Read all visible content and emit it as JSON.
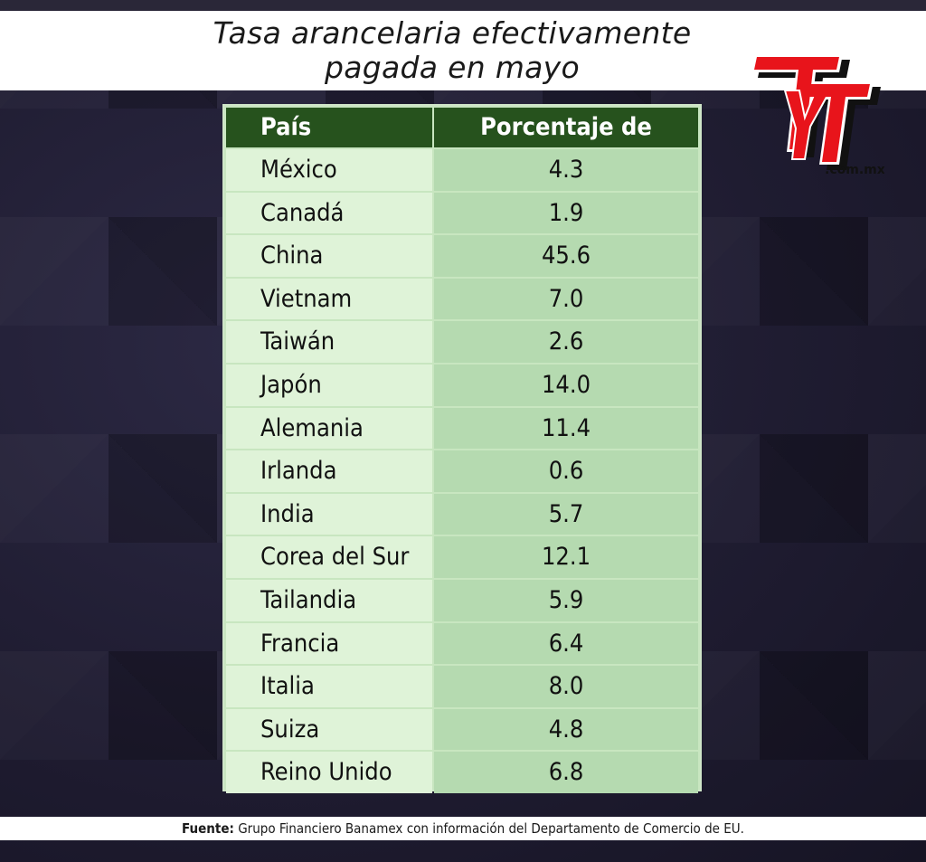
{
  "header": {
    "title_line1": "Tasa arancelaria efectivamente",
    "title_line2": "pagada en mayo"
  },
  "logo": {
    "text": "TyT",
    "domain": ".com.mx",
    "colors": {
      "red": "#e8141b",
      "black": "#111111",
      "white": "#ffffff"
    }
  },
  "chart_data": {
    "type": "table",
    "columns": [
      "País",
      "Porcentaje de arancel"
    ],
    "rows": [
      [
        "México",
        "4.3"
      ],
      [
        "Canadá",
        "1.9"
      ],
      [
        "China",
        "45.6"
      ],
      [
        "Vietnam",
        "7.0"
      ],
      [
        "Taiwán",
        "2.6"
      ],
      [
        "Japón",
        "14.0"
      ],
      [
        "Alemania",
        "11.4"
      ],
      [
        "Irlanda",
        "0.6"
      ],
      [
        "India",
        "5.7"
      ],
      [
        "Corea del Sur",
        "12.1"
      ],
      [
        "Tailandia",
        "5.9"
      ],
      [
        "Francia",
        "6.4"
      ],
      [
        "Italia",
        "8.0"
      ],
      [
        "Suiza",
        "4.8"
      ],
      [
        "Reino Unido",
        "6.8"
      ]
    ],
    "title": "Tasa arancelaria efectivamente pagada en mayo"
  },
  "footer": {
    "source_label": "Fuente:",
    "source_text": " Grupo Financiero Banamex con información del Departamento de Comercio de EU."
  },
  "colors": {
    "header_bg": "#26521d",
    "country_cell_bg": "#dff3d8",
    "value_cell_bg": "#b5dab0",
    "page_bg": "#1c1a2c"
  }
}
